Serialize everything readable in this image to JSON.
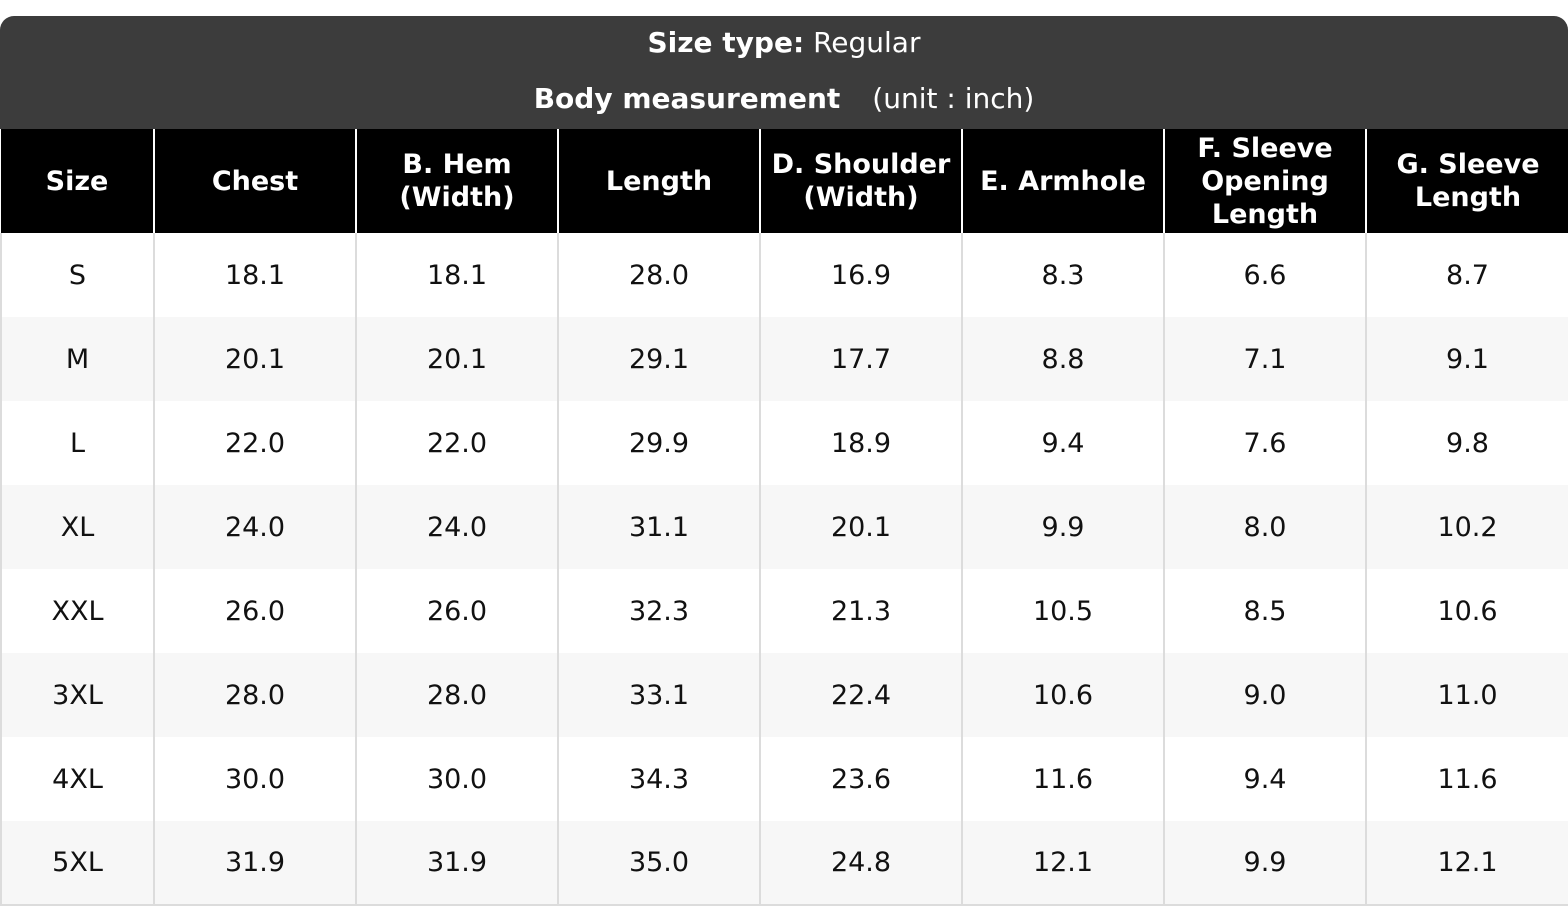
{
  "banner": {
    "size_type_label": "Size type:",
    "size_type_value": "Regular",
    "measurement_label": "Body measurement",
    "unit_text": "(unit : inch)"
  },
  "table": {
    "headers": [
      "Size",
      "Chest",
      "B. Hem\n(Width)",
      "Length",
      "D. Shoulder\n(Width)",
      "E. Armhole",
      "F. Sleeve\nOpening\nLength",
      "G. Sleeve\nLength"
    ],
    "rows": [
      [
        "S",
        "18.1",
        "18.1",
        "28.0",
        "16.9",
        "8.3",
        "6.6",
        "8.7"
      ],
      [
        "M",
        "20.1",
        "20.1",
        "29.1",
        "17.7",
        "8.8",
        "7.1",
        "9.1"
      ],
      [
        "L",
        "22.0",
        "22.0",
        "29.9",
        "18.9",
        "9.4",
        "7.6",
        "9.8"
      ],
      [
        "XL",
        "24.0",
        "24.0",
        "31.1",
        "20.1",
        "9.9",
        "8.0",
        "10.2"
      ],
      [
        "XXL",
        "26.0",
        "26.0",
        "32.3",
        "21.3",
        "10.5",
        "8.5",
        "10.6"
      ],
      [
        "3XL",
        "28.0",
        "28.0",
        "33.1",
        "22.4",
        "10.6",
        "9.0",
        "11.0"
      ],
      [
        "4XL",
        "30.0",
        "30.0",
        "34.3",
        "23.6",
        "11.6",
        "9.4",
        "11.6"
      ],
      [
        "5XL",
        "31.9",
        "31.9",
        "35.0",
        "24.8",
        "12.1",
        "9.9",
        "12.1"
      ]
    ]
  },
  "colors": {
    "banner_bg": "#3c3c3c",
    "header_bg": "#000000",
    "stripe_bg": "#f7f7f7",
    "grid_line": "#dcdcdc"
  }
}
